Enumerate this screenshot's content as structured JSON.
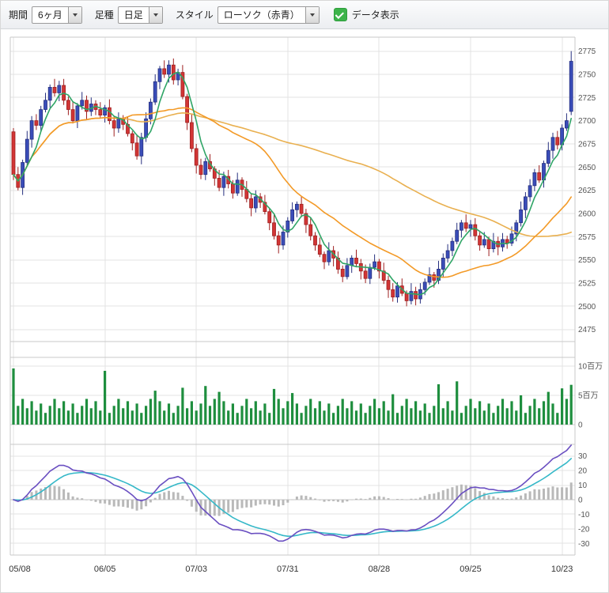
{
  "toolbar": {
    "period_label": "期間",
    "period_value": "6ヶ月",
    "bartype_label": "足種",
    "bartype_value": "日足",
    "style_label": "スタイル",
    "style_value": "ローソク（赤青）",
    "data_display_label": "データ表示",
    "checkbox_checked": true
  },
  "colors": {
    "up_candle": "#3a4db9",
    "up_stroke": "#26307f",
    "down_candle": "#d23535",
    "down_stroke": "#9e2020",
    "ma5": "#2fa566",
    "ma25": "#f39a27",
    "ma75": "#e9b050",
    "volume": "#1e8e3e",
    "macd": "#6a4fc1",
    "macd_signal": "#35b8c8",
    "macd_hist": "#b9b9b9",
    "grid": "#e3e3e3",
    "border": "#c9c9c9",
    "axis_text": "#555",
    "checkbox": "#3cb34a"
  },
  "chart_data": {
    "type": "candlestick",
    "panels": [
      "price",
      "volume",
      "macd"
    ],
    "x_ticks": [
      {
        "index": 0,
        "label": "05/08"
      },
      {
        "index": 20,
        "label": "06/05"
      },
      {
        "index": 40,
        "label": "07/03"
      },
      {
        "index": 60,
        "label": "07/31"
      },
      {
        "index": 80,
        "label": "08/28"
      },
      {
        "index": 100,
        "label": "09/25"
      },
      {
        "index": 120,
        "label": "10/23"
      }
    ],
    "price": {
      "ylim": [
        2462,
        2790
      ],
      "yticks": [
        2475,
        2500,
        2525,
        2550,
        2575,
        2600,
        2625,
        2650,
        2675,
        2700,
        2725,
        2750,
        2775
      ],
      "ma_periods": [
        5,
        25,
        75
      ],
      "ohlc": [
        [
          2688,
          2692,
          2636,
          2642
        ],
        [
          2642,
          2650,
          2625,
          2628
        ],
        [
          2628,
          2658,
          2620,
          2655
        ],
        [
          2655,
          2689,
          2651,
          2680
        ],
        [
          2680,
          2705,
          2671,
          2700
        ],
        [
          2700,
          2707,
          2690,
          2695
        ],
        [
          2695,
          2716,
          2689,
          2712
        ],
        [
          2712,
          2730,
          2709,
          2722
        ],
        [
          2722,
          2739,
          2714,
          2736
        ],
        [
          2736,
          2745,
          2726,
          2730
        ],
        [
          2730,
          2743,
          2721,
          2738
        ],
        [
          2738,
          2745,
          2717,
          2722
        ],
        [
          2722,
          2726,
          2706,
          2712
        ],
        [
          2712,
          2720,
          2697,
          2700
        ],
        [
          2700,
          2719,
          2692,
          2716
        ],
        [
          2716,
          2731,
          2712,
          2722
        ],
        [
          2722,
          2727,
          2701,
          2710
        ],
        [
          2710,
          2725,
          2705,
          2718
        ],
        [
          2718,
          2722,
          2706,
          2712
        ],
        [
          2712,
          2720,
          2703,
          2706
        ],
        [
          2706,
          2717,
          2698,
          2714
        ],
        [
          2714,
          2723,
          2696,
          2700
        ],
        [
          2700,
          2705,
          2683,
          2692
        ],
        [
          2692,
          2709,
          2687,
          2702
        ],
        [
          2702,
          2706,
          2690,
          2696
        ],
        [
          2696,
          2704,
          2683,
          2686
        ],
        [
          2686,
          2689,
          2668,
          2676
        ],
        [
          2676,
          2685,
          2658,
          2662
        ],
        [
          2662,
          2687,
          2653,
          2682
        ],
        [
          2682,
          2709,
          2677,
          2702
        ],
        [
          2702,
          2724,
          2696,
          2720
        ],
        [
          2720,
          2750,
          2717,
          2742
        ],
        [
          2742,
          2759,
          2734,
          2756
        ],
        [
          2756,
          2765,
          2746,
          2750
        ],
        [
          2750,
          2765,
          2741,
          2760
        ],
        [
          2760,
          2767,
          2739,
          2744
        ],
        [
          2744,
          2756,
          2738,
          2752
        ],
        [
          2752,
          2760,
          2723,
          2726
        ],
        [
          2726,
          2729,
          2690,
          2698
        ],
        [
          2698,
          2707,
          2666,
          2670
        ],
        [
          2670,
          2675,
          2643,
          2652
        ],
        [
          2652,
          2659,
          2637,
          2642
        ],
        [
          2642,
          2660,
          2636,
          2656
        ],
        [
          2656,
          2664,
          2645,
          2648
        ],
        [
          2648,
          2651,
          2630,
          2638
        ],
        [
          2638,
          2647,
          2624,
          2628
        ],
        [
          2628,
          2645,
          2619,
          2640
        ],
        [
          2640,
          2647,
          2627,
          2632
        ],
        [
          2632,
          2636,
          2616,
          2622
        ],
        [
          2622,
          2644,
          2619,
          2636
        ],
        [
          2636,
          2639,
          2618,
          2626
        ],
        [
          2626,
          2635,
          2612,
          2616
        ],
        [
          2616,
          2621,
          2597,
          2606
        ],
        [
          2606,
          2625,
          2601,
          2618
        ],
        [
          2618,
          2622,
          2606,
          2612
        ],
        [
          2612,
          2620,
          2599,
          2602
        ],
        [
          2602,
          2605,
          2582,
          2590
        ],
        [
          2590,
          2599,
          2572,
          2576
        ],
        [
          2576,
          2581,
          2557,
          2566
        ],
        [
          2566,
          2587,
          2561,
          2580
        ],
        [
          2580,
          2596,
          2574,
          2592
        ],
        [
          2592,
          2612,
          2589,
          2604
        ],
        [
          2604,
          2613,
          2596,
          2610
        ],
        [
          2610,
          2619,
          2596,
          2600
        ],
        [
          2600,
          2605,
          2579,
          2588
        ],
        [
          2588,
          2595,
          2571,
          2576
        ],
        [
          2576,
          2580,
          2560,
          2566
        ],
        [
          2566,
          2574,
          2553,
          2556
        ],
        [
          2556,
          2559,
          2540,
          2548
        ],
        [
          2548,
          2569,
          2544,
          2560
        ],
        [
          2560,
          2565,
          2543,
          2552
        ],
        [
          2552,
          2559,
          2535,
          2540
        ],
        [
          2540,
          2544,
          2526,
          2532
        ],
        [
          2532,
          2552,
          2529,
          2544
        ],
        [
          2544,
          2555,
          2536,
          2552
        ],
        [
          2552,
          2561,
          2542,
          2546
        ],
        [
          2546,
          2551,
          2529,
          2538
        ],
        [
          2538,
          2545,
          2525,
          2530
        ],
        [
          2530,
          2546,
          2524,
          2542
        ],
        [
          2542,
          2556,
          2539,
          2548
        ],
        [
          2548,
          2551,
          2530,
          2538
        ],
        [
          2538,
          2547,
          2524,
          2528
        ],
        [
          2528,
          2533,
          2509,
          2518
        ],
        [
          2518,
          2525,
          2505,
          2510
        ],
        [
          2510,
          2526,
          2504,
          2522
        ],
        [
          2522,
          2530,
          2511,
          2514
        ],
        [
          2514,
          2517,
          2500,
          2506
        ],
        [
          2506,
          2525,
          2502,
          2516
        ],
        [
          2516,
          2521,
          2501,
          2508
        ],
        [
          2508,
          2525,
          2503,
          2518
        ],
        [
          2518,
          2530,
          2512,
          2526
        ],
        [
          2526,
          2542,
          2523,
          2534
        ],
        [
          2534,
          2537,
          2520,
          2528
        ],
        [
          2528,
          2549,
          2524,
          2540
        ],
        [
          2540,
          2557,
          2531,
          2552
        ],
        [
          2552,
          2567,
          2547,
          2560
        ],
        [
          2560,
          2574,
          2554,
          2570
        ],
        [
          2570,
          2590,
          2567,
          2582
        ],
        [
          2582,
          2593,
          2574,
          2590
        ],
        [
          2590,
          2599,
          2580,
          2584
        ],
        [
          2584,
          2593,
          2575,
          2588
        ],
        [
          2588,
          2595,
          2571,
          2576
        ],
        [
          2576,
          2580,
          2560,
          2566
        ],
        [
          2566,
          2580,
          2563,
          2572
        ],
        [
          2572,
          2575,
          2554,
          2562
        ],
        [
          2562,
          2579,
          2558,
          2570
        ],
        [
          2570,
          2575,
          2555,
          2564
        ],
        [
          2564,
          2579,
          2559,
          2572
        ],
        [
          2572,
          2576,
          2562,
          2568
        ],
        [
          2568,
          2586,
          2565,
          2578
        ],
        [
          2578,
          2593,
          2570,
          2590
        ],
        [
          2590,
          2613,
          2586,
          2604
        ],
        [
          2604,
          2623,
          2595,
          2618
        ],
        [
          2618,
          2637,
          2613,
          2630
        ],
        [
          2630,
          2648,
          2624,
          2644
        ],
        [
          2644,
          2652,
          2633,
          2636
        ],
        [
          2636,
          2657,
          2628,
          2654
        ],
        [
          2654,
          2677,
          2650,
          2668
        ],
        [
          2668,
          2687,
          2659,
          2682
        ],
        [
          2682,
          2689,
          2669,
          2674
        ],
        [
          2674,
          2696,
          2668,
          2692
        ],
        [
          2692,
          2708,
          2689,
          2700
        ],
        [
          2710,
          2775,
          2706,
          2764
        ]
      ]
    },
    "volume": {
      "unit": "百万",
      "ylim": [
        0,
        11.5
      ],
      "yticks": [
        {
          "v": 10,
          "label": "10百万"
        },
        {
          "v": 5,
          "label": "5百万"
        },
        {
          "v": 0,
          "label": "0"
        }
      ],
      "values": [
        9.6,
        3.2,
        4.4,
        2.8,
        4.0,
        2.4,
        3.6,
        2.0,
        3.2,
        4.4,
        2.8,
        4.0,
        2.4,
        3.6,
        2.0,
        3.2,
        4.4,
        2.8,
        4.0,
        2.4,
        9.2,
        2.0,
        3.2,
        4.4,
        2.8,
        4.0,
        2.4,
        3.6,
        2.0,
        3.2,
        4.4,
        5.8,
        4.0,
        2.4,
        3.6,
        2.0,
        3.2,
        6.3,
        2.8,
        4.0,
        2.4,
        3.6,
        6.6,
        3.2,
        4.4,
        5.6,
        4.0,
        2.4,
        3.6,
        2.0,
        3.2,
        4.4,
        2.8,
        4.0,
        2.4,
        3.6,
        2.0,
        6.1,
        4.4,
        2.8,
        4.0,
        5.4,
        3.6,
        2.0,
        3.2,
        4.4,
        2.8,
        4.0,
        2.4,
        3.6,
        2.0,
        3.2,
        4.4,
        2.8,
        4.0,
        2.4,
        3.6,
        2.0,
        3.2,
        4.4,
        2.8,
        4.0,
        2.4,
        5.2,
        2.0,
        3.2,
        4.4,
        2.8,
        4.0,
        2.4,
        3.6,
        2.0,
        3.2,
        6.9,
        2.8,
        4.0,
        2.4,
        7.4,
        2.0,
        3.2,
        4.4,
        2.8,
        4.0,
        2.4,
        3.6,
        2.0,
        3.2,
        4.4,
        2.8,
        4.0,
        2.4,
        5.0,
        2.0,
        3.2,
        4.4,
        2.8,
        4.0,
        5.6,
        3.6,
        2.0,
        6.2,
        4.4,
        6.8
      ]
    },
    "macd": {
      "params": {
        "fast": 12,
        "slow": 26,
        "signal": 9
      },
      "ylim": [
        -38,
        38
      ],
      "yticks": [
        30,
        20,
        10,
        0,
        -10,
        -20,
        -30
      ]
    }
  }
}
